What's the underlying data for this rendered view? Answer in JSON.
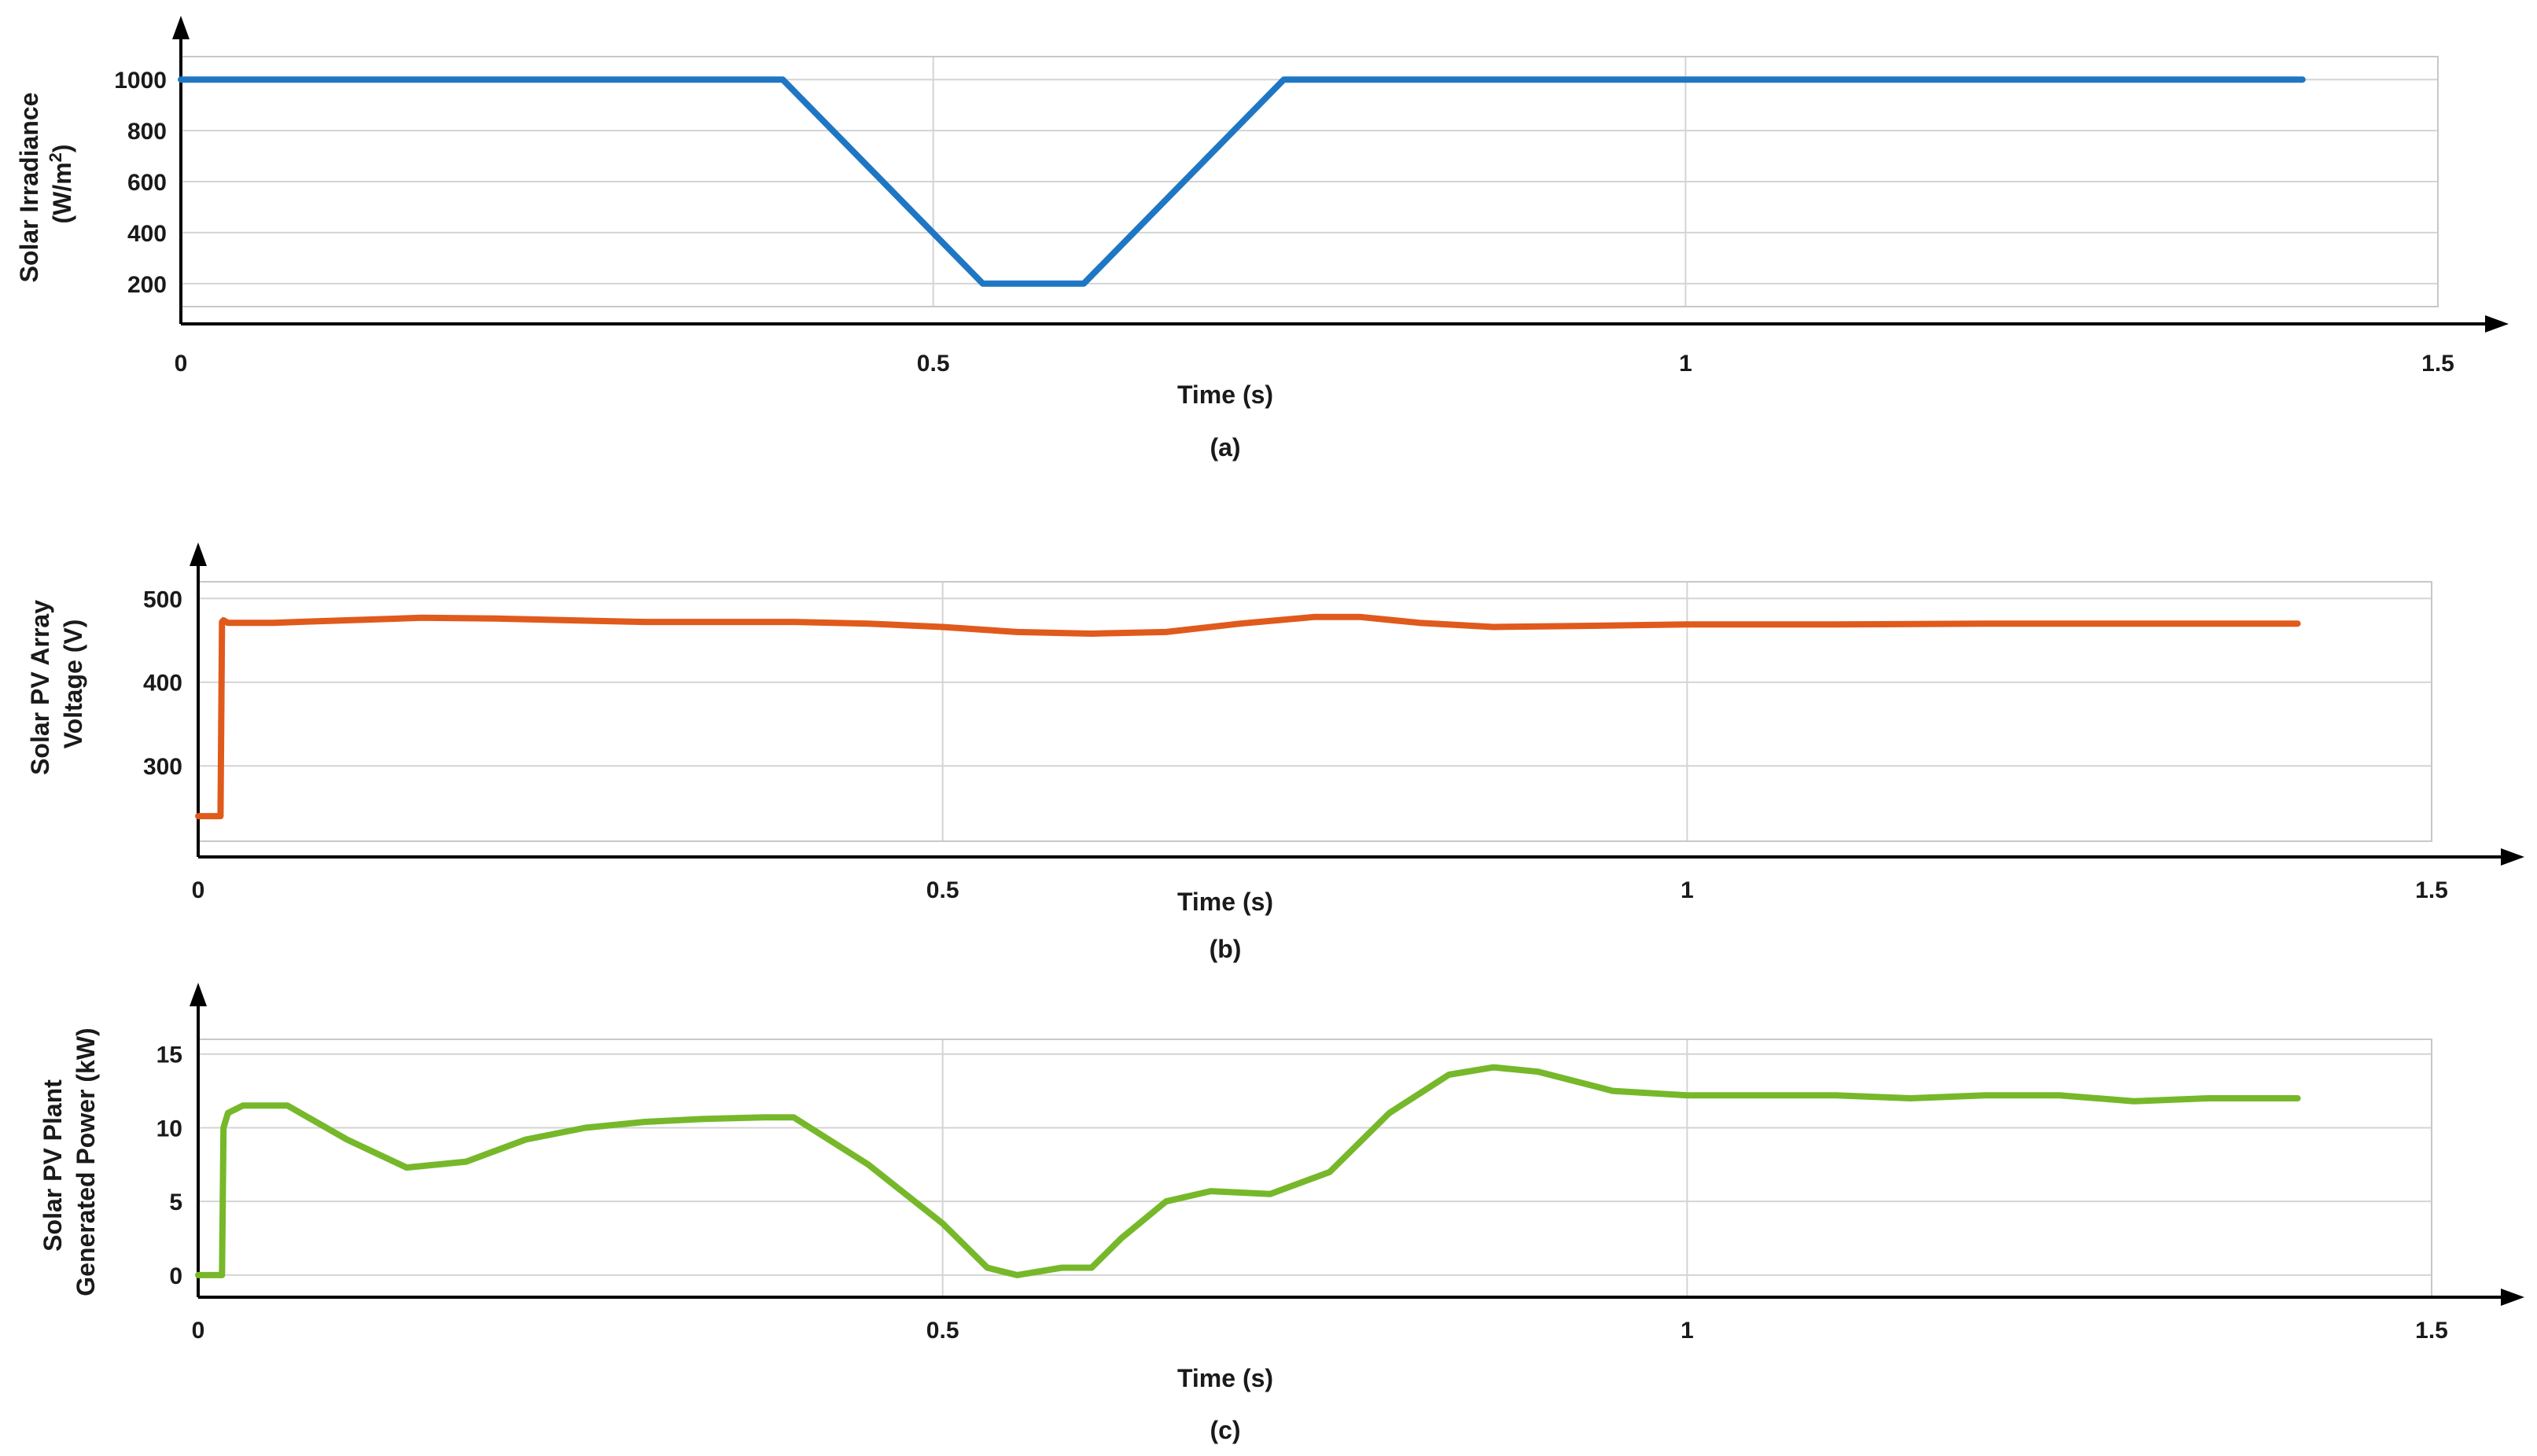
{
  "chart_data": [
    {
      "type": "line",
      "caption": "(a)",
      "xlabel": "Time (s)",
      "ylabel_lines": [
        "Solar Irradiance",
        "(W/m",
        "2",
        ")"
      ],
      "xlim": [
        0,
        1.5
      ],
      "ylim": [
        110,
        1090
      ],
      "xticks": [
        0,
        0.5,
        1,
        1.5
      ],
      "xtick_labels": [
        "0",
        "0.5",
        "1",
        "1.5"
      ],
      "yticks": [
        200,
        400,
        600,
        800,
        1000
      ],
      "ytick_labels": [
        "200",
        "400",
        "600",
        "800",
        "1000"
      ],
      "grid": true,
      "color": "#1f77c4",
      "series": [
        {
          "x": [
            0,
            0.4,
            0.533,
            0.6,
            0.733,
            1.41
          ],
          "y": [
            1000,
            1000,
            200,
            200,
            1000,
            1000
          ]
        }
      ]
    },
    {
      "type": "line",
      "caption": "(b)",
      "xlabel": "Time (s)",
      "ylabel_lines": [
        "Solar PV Array",
        "Voltage (V)"
      ],
      "xlim": [
        0,
        1.5
      ],
      "ylim": [
        210,
        520
      ],
      "xticks": [
        0,
        0.5,
        1,
        1.5
      ],
      "xtick_labels": [
        "0",
        "0.5",
        "1",
        "1.5"
      ],
      "yticks": [
        300,
        400,
        500
      ],
      "ytick_labels": [
        "300",
        "400",
        "500"
      ],
      "grid": true,
      "color": "#e05a1c",
      "series": [
        {
          "x": [
            0,
            0.015,
            0.016,
            0.017,
            0.02,
            0.05,
            0.1,
            0.15,
            0.2,
            0.25,
            0.3,
            0.35,
            0.4,
            0.45,
            0.5,
            0.55,
            0.6,
            0.65,
            0.7,
            0.75,
            0.78,
            0.82,
            0.87,
            0.92,
            1.0,
            1.1,
            1.2,
            1.3,
            1.41
          ],
          "y": [
            240,
            240,
            472,
            474,
            471,
            471,
            474,
            477,
            476,
            474,
            472,
            472,
            472,
            470,
            466,
            460,
            458,
            460,
            470,
            478,
            478,
            471,
            466,
            467,
            469,
            469,
            470,
            470,
            470
          ]
        }
      ]
    },
    {
      "type": "line",
      "caption": "(c)",
      "xlabel": "Time (s)",
      "ylabel_lines": [
        "Solar PV Plant",
        "Generated Power (kW)"
      ],
      "xlim": [
        0,
        1.5
      ],
      "ylim": [
        -1.5,
        16
      ],
      "xticks": [
        0,
        0.5,
        1,
        1.5
      ],
      "xtick_labels": [
        "0",
        "0.5",
        "1",
        "1.5"
      ],
      "yticks": [
        0,
        5,
        10,
        15
      ],
      "ytick_labels": [
        "0",
        "5",
        "10",
        "15"
      ],
      "grid": true,
      "color": "#76b82a",
      "series": [
        {
          "x": [
            0,
            0.016,
            0.017,
            0.02,
            0.03,
            0.06,
            0.1,
            0.14,
            0.18,
            0.22,
            0.26,
            0.3,
            0.34,
            0.38,
            0.4,
            0.45,
            0.5,
            0.53,
            0.55,
            0.58,
            0.6,
            0.62,
            0.65,
            0.68,
            0.72,
            0.76,
            0.8,
            0.84,
            0.87,
            0.9,
            0.95,
            1.0,
            1.05,
            1.1,
            1.15,
            1.2,
            1.25,
            1.3,
            1.35,
            1.41
          ],
          "y": [
            0,
            0,
            10,
            11,
            11.5,
            11.5,
            9.2,
            7.3,
            7.7,
            9.2,
            10.0,
            10.4,
            10.6,
            10.7,
            10.7,
            7.5,
            3.5,
            0.5,
            0,
            0.5,
            0.5,
            2.5,
            5.0,
            5.7,
            5.5,
            7.0,
            11.0,
            13.6,
            14.1,
            13.8,
            12.5,
            12.2,
            12.2,
            12.2,
            12.0,
            12.2,
            12.2,
            11.8,
            12.0,
            12.0
          ]
        }
      ]
    }
  ]
}
